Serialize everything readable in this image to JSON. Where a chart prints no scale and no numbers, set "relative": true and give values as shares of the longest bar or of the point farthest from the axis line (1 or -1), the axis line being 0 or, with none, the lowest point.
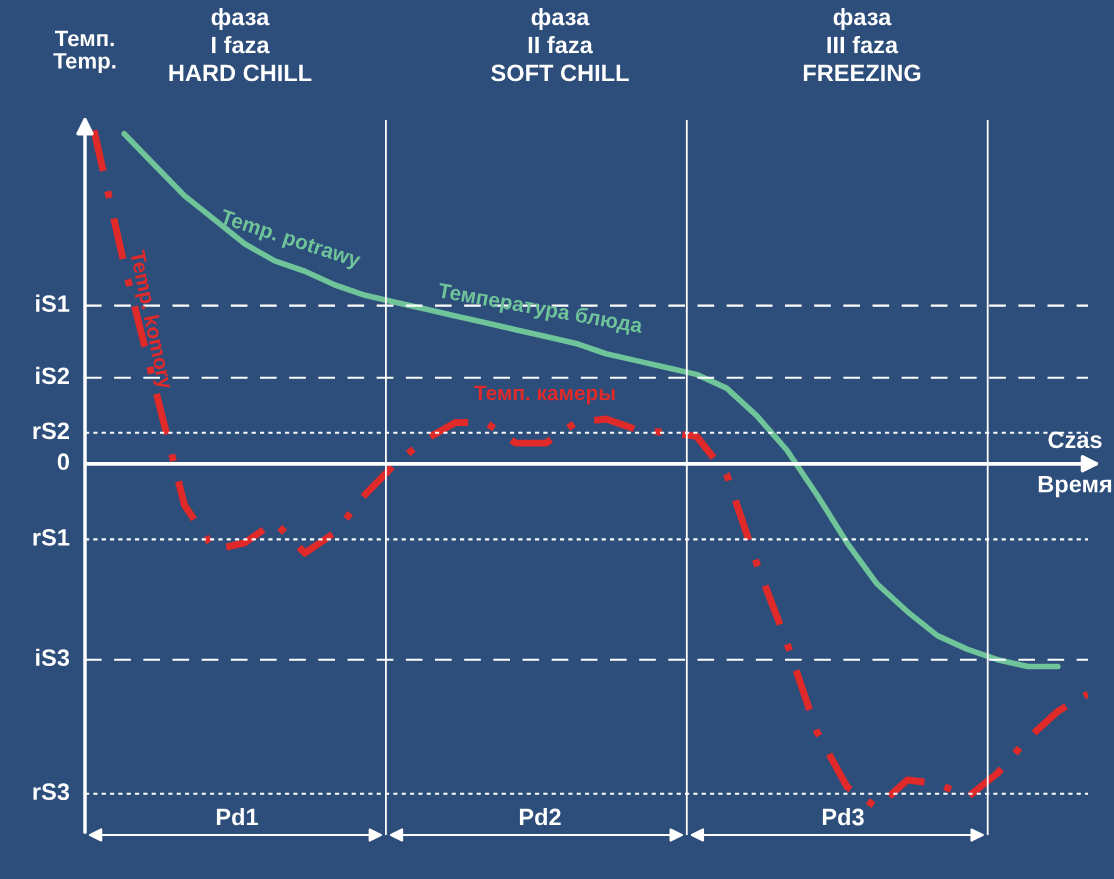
{
  "chart_data": {
    "type": "line",
    "relative": true,
    "ylabel": "Темп.\nTemp.",
    "xlabel": "Czas\nВремя",
    "categories": [
      null,
      null,
      null,
      null,
      null,
      null,
      null,
      null,
      null,
      null,
      null,
      null,
      null,
      null,
      null,
      null,
      null,
      null,
      null,
      null,
      null,
      null,
      null,
      null,
      null,
      null,
      null,
      null,
      null,
      null,
      null,
      null,
      null,
      null
    ],
    "series": [
      {
        "name": "Temp. potrawy",
        "color": "#6fc49a",
        "line_style": "solid",
        "values": [
          null,
          0.96,
          0.87,
          0.78,
          0.71,
          0.64,
          0.59,
          0.56,
          0.52,
          0.49,
          0.47,
          0.45,
          0.43,
          0.41,
          0.39,
          0.37,
          0.35,
          0.32,
          0.3,
          0.28,
          0.26,
          0.22,
          0.14,
          0.04,
          -0.09,
          -0.23,
          -0.35,
          -0.43,
          -0.5,
          -0.54,
          -0.57,
          -0.59,
          -0.59,
          null
        ]
      },
      {
        "name": "Temp. komory",
        "color": "#e02a2a",
        "line_style": "dashed",
        "values": [
          0.97,
          0.58,
          0.23,
          -0.12,
          -0.25,
          -0.23,
          -0.17,
          -0.26,
          -0.2,
          -0.09,
          0.0,
          0.07,
          0.12,
          0.12,
          0.06,
          0.06,
          0.12,
          0.13,
          0.1,
          0.09,
          0.08,
          -0.03,
          -0.29,
          -0.52,
          -0.78,
          -0.94,
          -1.0,
          -0.92,
          -0.93,
          -0.97,
          -0.9,
          -0.8,
          -0.72,
          -0.67
        ]
      }
    ],
    "annotations": [
      "фаза\nI faza\nHARD CHILL",
      "фаза\nII faza\nSOFT CHILL",
      "фаза\nIII faza\nFREEZING",
      "Температура блюда",
      "Темп. камеры",
      "Pd1",
      "Pd2",
      "Pd3"
    ],
    "ref_lines": [
      {
        "axis": "y",
        "value": 0.46,
        "label": "iS1",
        "line_style": "dashed",
        "color": "#ffffff"
      },
      {
        "axis": "y",
        "value": 0.25,
        "label": "iS2",
        "line_style": "dashed",
        "color": "#ffffff"
      },
      {
        "axis": "y",
        "value": 0.09,
        "label": "rS2",
        "line_style": "dotted",
        "color": "#ffffff"
      },
      {
        "axis": "y",
        "value": 0,
        "label": "0",
        "line_style": "solid",
        "color": "#ffffff"
      },
      {
        "axis": "y",
        "value": -0.22,
        "label": "rS1",
        "line_style": "dotted",
        "color": "#ffffff"
      },
      {
        "axis": "y",
        "value": -0.57,
        "label": "iS3",
        "line_style": "dashed",
        "color": "#ffffff"
      },
      {
        "axis": "y",
        "value": -0.96,
        "label": "rS3",
        "line_style": "dotted",
        "color": "#ffffff"
      }
    ],
    "legend": false
  }
}
